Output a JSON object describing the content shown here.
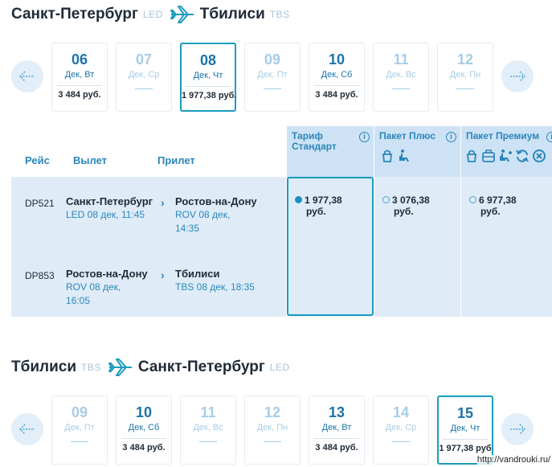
{
  "outbound": {
    "from_city": "Санкт-Петербург",
    "from_code": "LED",
    "to_city": "Тбилиси",
    "to_code": "TBS",
    "days": [
      {
        "num": "06",
        "label": "Дек, Вт",
        "price": "3 484 руб.",
        "state": "normal"
      },
      {
        "num": "07",
        "label": "Дек, Ср",
        "price": "",
        "state": "faded"
      },
      {
        "num": "08",
        "label": "Дек, Чт",
        "price": "1 977,38 руб.",
        "state": "selected"
      },
      {
        "num": "09",
        "label": "Дек, Пт",
        "price": "",
        "state": "faded"
      },
      {
        "num": "10",
        "label": "Дек, Сб",
        "price": "3 484 руб.",
        "state": "normal"
      },
      {
        "num": "11",
        "label": "Дек, Вс",
        "price": "",
        "state": "faded"
      },
      {
        "num": "12",
        "label": "Дек, Пн",
        "price": "",
        "state": "faded"
      }
    ]
  },
  "flights_table": {
    "headers": {
      "flight": "Рейс",
      "depart": "Вылет",
      "arrive": "Прилет"
    },
    "fares": [
      {
        "name": "Тариф Стандарт",
        "price": "1 977,38",
        "currency": "руб.",
        "selected": true
      },
      {
        "name": "Пакет Плюс",
        "price": "3 076,38",
        "currency": "руб.",
        "selected": false
      },
      {
        "name": "Пакет Премиум",
        "price": "6 977,38",
        "currency": "руб.",
        "selected": false
      }
    ],
    "info_glyph": "i",
    "legs": [
      {
        "flight": "DP521",
        "from_city": "Санкт-Петербург",
        "from_detail": "LED 08 дек, 11:45",
        "to_city": "Ростов-на-Дону",
        "to_detail": "ROV 08 дек,",
        "to_detail2": "14:35"
      },
      {
        "flight": "DP853",
        "from_city": "Ростов-на-Дону",
        "from_detail": "ROV 08 дек,",
        "from_detail2": "16:05",
        "to_city": "Тбилиси",
        "to_detail": "TBS 08 дек, 18:35",
        "to_detail2": ""
      }
    ],
    "chevron": "›"
  },
  "return": {
    "from_city": "Тбилиси",
    "from_code": "TBS",
    "to_city": "Санкт-Петербург",
    "to_code": "LED",
    "days": [
      {
        "num": "09",
        "label": "Дек, Пт",
        "price": "",
        "state": "faded"
      },
      {
        "num": "10",
        "label": "Дек, Сб",
        "price": "3 484 руб.",
        "state": "normal"
      },
      {
        "num": "11",
        "label": "Дек, Вс",
        "price": "",
        "state": "faded"
      },
      {
        "num": "12",
        "label": "Дек, Пн",
        "price": "",
        "state": "faded"
      },
      {
        "num": "13",
        "label": "Дек, Вт",
        "price": "3 484 руб.",
        "state": "normal"
      },
      {
        "num": "14",
        "label": "Дек, Ср",
        "price": "",
        "state": "faded"
      },
      {
        "num": "15",
        "label": "Дек, Чт",
        "price": "1 977,38 руб",
        "state": "selected"
      }
    ]
  },
  "watermark": "http://vandrouki.ru/",
  "colors": {
    "accent": "#1a9cbf",
    "link": "#2b86b9",
    "panel": "#dfecf8",
    "panel_header": "#cde2f5"
  },
  "icons": [
    "plane-icon",
    "arrow-left-icon",
    "arrow-right-icon",
    "info-icon",
    "baggage-icon",
    "seat-icon",
    "suitcase-icon",
    "refresh-icon",
    "cancel-icon"
  ]
}
